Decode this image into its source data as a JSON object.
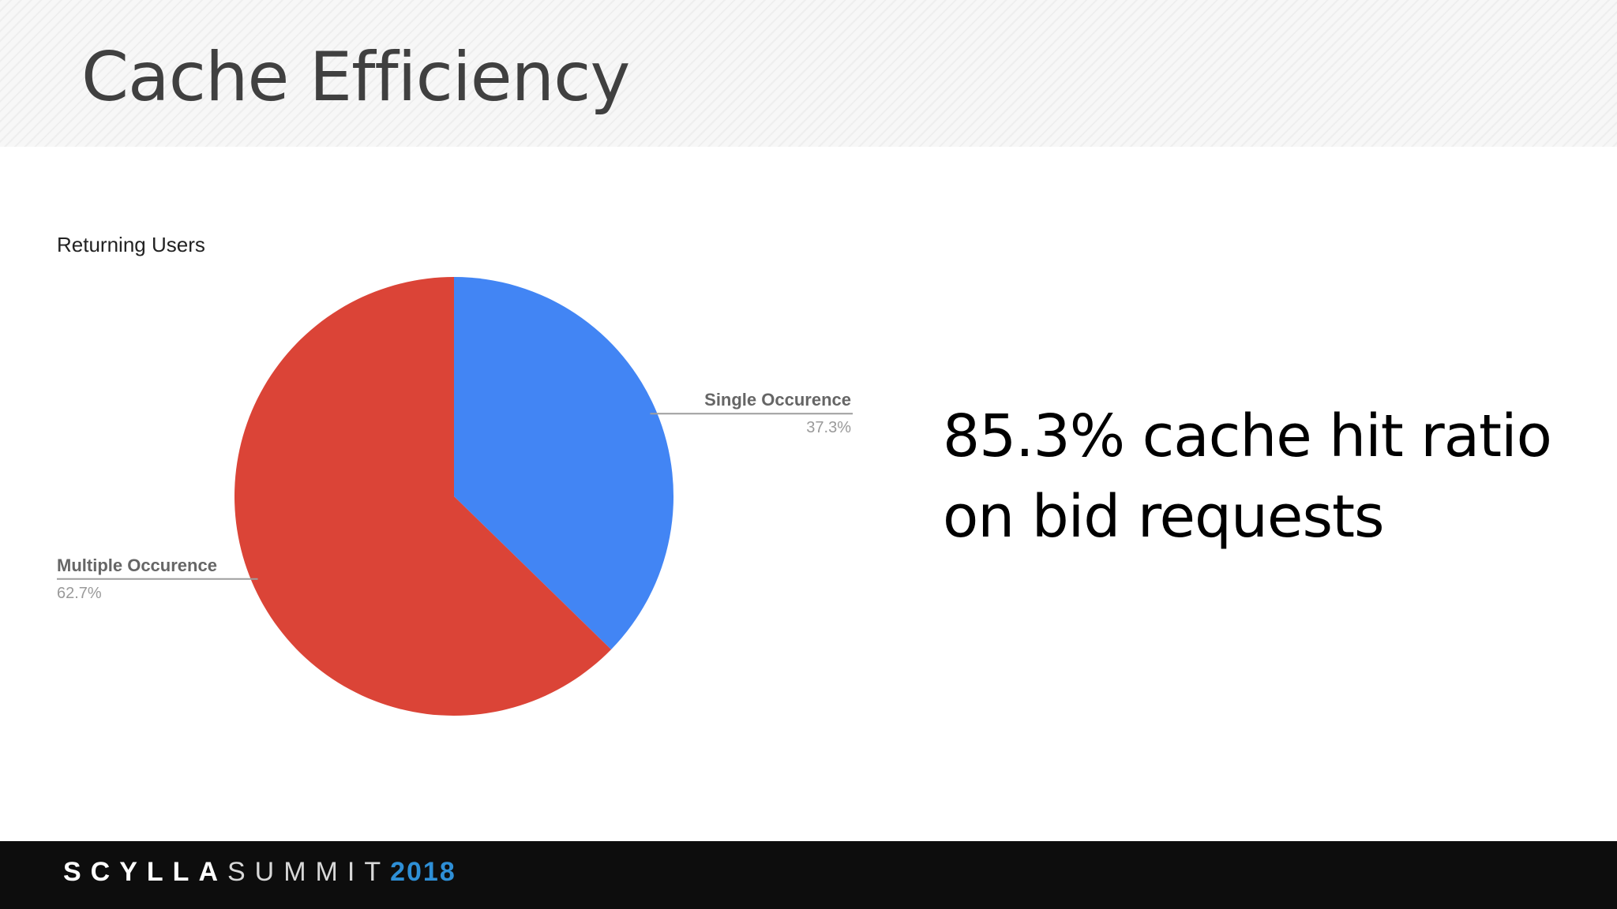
{
  "slide": {
    "title": "Cache Efficiency",
    "statement_line1": "85.3% cache hit ratio",
    "statement_line2": "on bid requests"
  },
  "footer": {
    "logo_part1": "SCYLLA",
    "logo_part2": "SUMMIT",
    "logo_year": "2018",
    "year_color": "#2e8fd6"
  },
  "chart_data": {
    "type": "pie",
    "title": "Returning Users",
    "slices": [
      {
        "label": "Single Occurence",
        "value": 37.3,
        "display": "37.3%",
        "color": "#4285f4"
      },
      {
        "label": "Multiple Occurence",
        "value": 62.7,
        "display": "62.7%",
        "color": "#db4437"
      }
    ],
    "start_angle": "12 o'clock",
    "direction": "clockwise",
    "label_style": "callout lines with label and percentage"
  }
}
